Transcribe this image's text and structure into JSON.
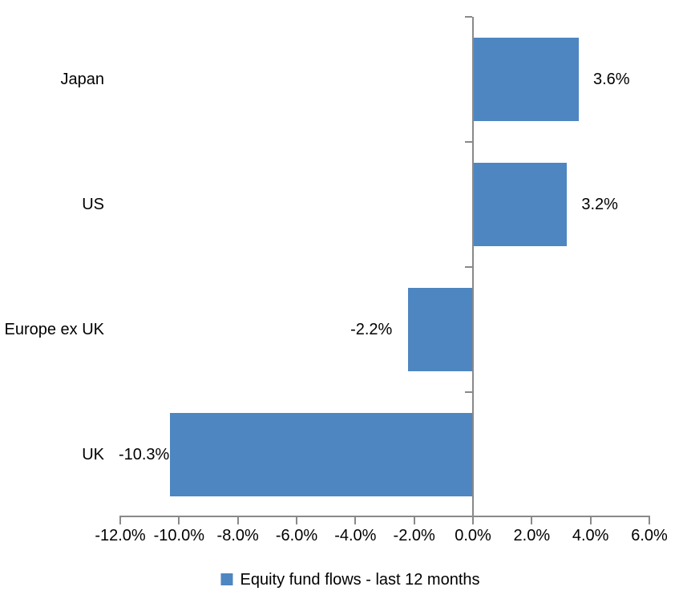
{
  "chart_data": {
    "type": "bar",
    "orientation": "horizontal",
    "title": "",
    "categories": [
      "Japan",
      "US",
      "Europe ex UK",
      "UK"
    ],
    "series": [
      {
        "name": "Equity fund flows - last 12 months",
        "values": [
          3.6,
          3.2,
          -2.2,
          -10.3
        ],
        "value_labels": [
          "3.6%",
          "3.2%",
          "-2.2%",
          "-10.3%"
        ]
      }
    ],
    "xlabel": "",
    "ylabel": "",
    "xlim": [
      -12,
      6
    ],
    "x_tick_step": 2,
    "x_tick_values": [
      -12,
      -10,
      -8,
      -6,
      -4,
      -2,
      0,
      2,
      4,
      6
    ],
    "x_tick_labels": [
      "-12.0%",
      "-10.0%",
      "-8.0%",
      "-6.0%",
      "-4.0%",
      "-2.0%",
      "0.0%",
      "2.0%",
      "4.0%",
      "6.0%"
    ],
    "grid": "off",
    "legend_position": "bottom",
    "bar_color": "#4E86C1",
    "axis_color": "#898989",
    "text_color": "#000000"
  },
  "legend": {
    "label": "Equity fund flows - last 12 months",
    "swatch_color": "#4E86C1"
  }
}
